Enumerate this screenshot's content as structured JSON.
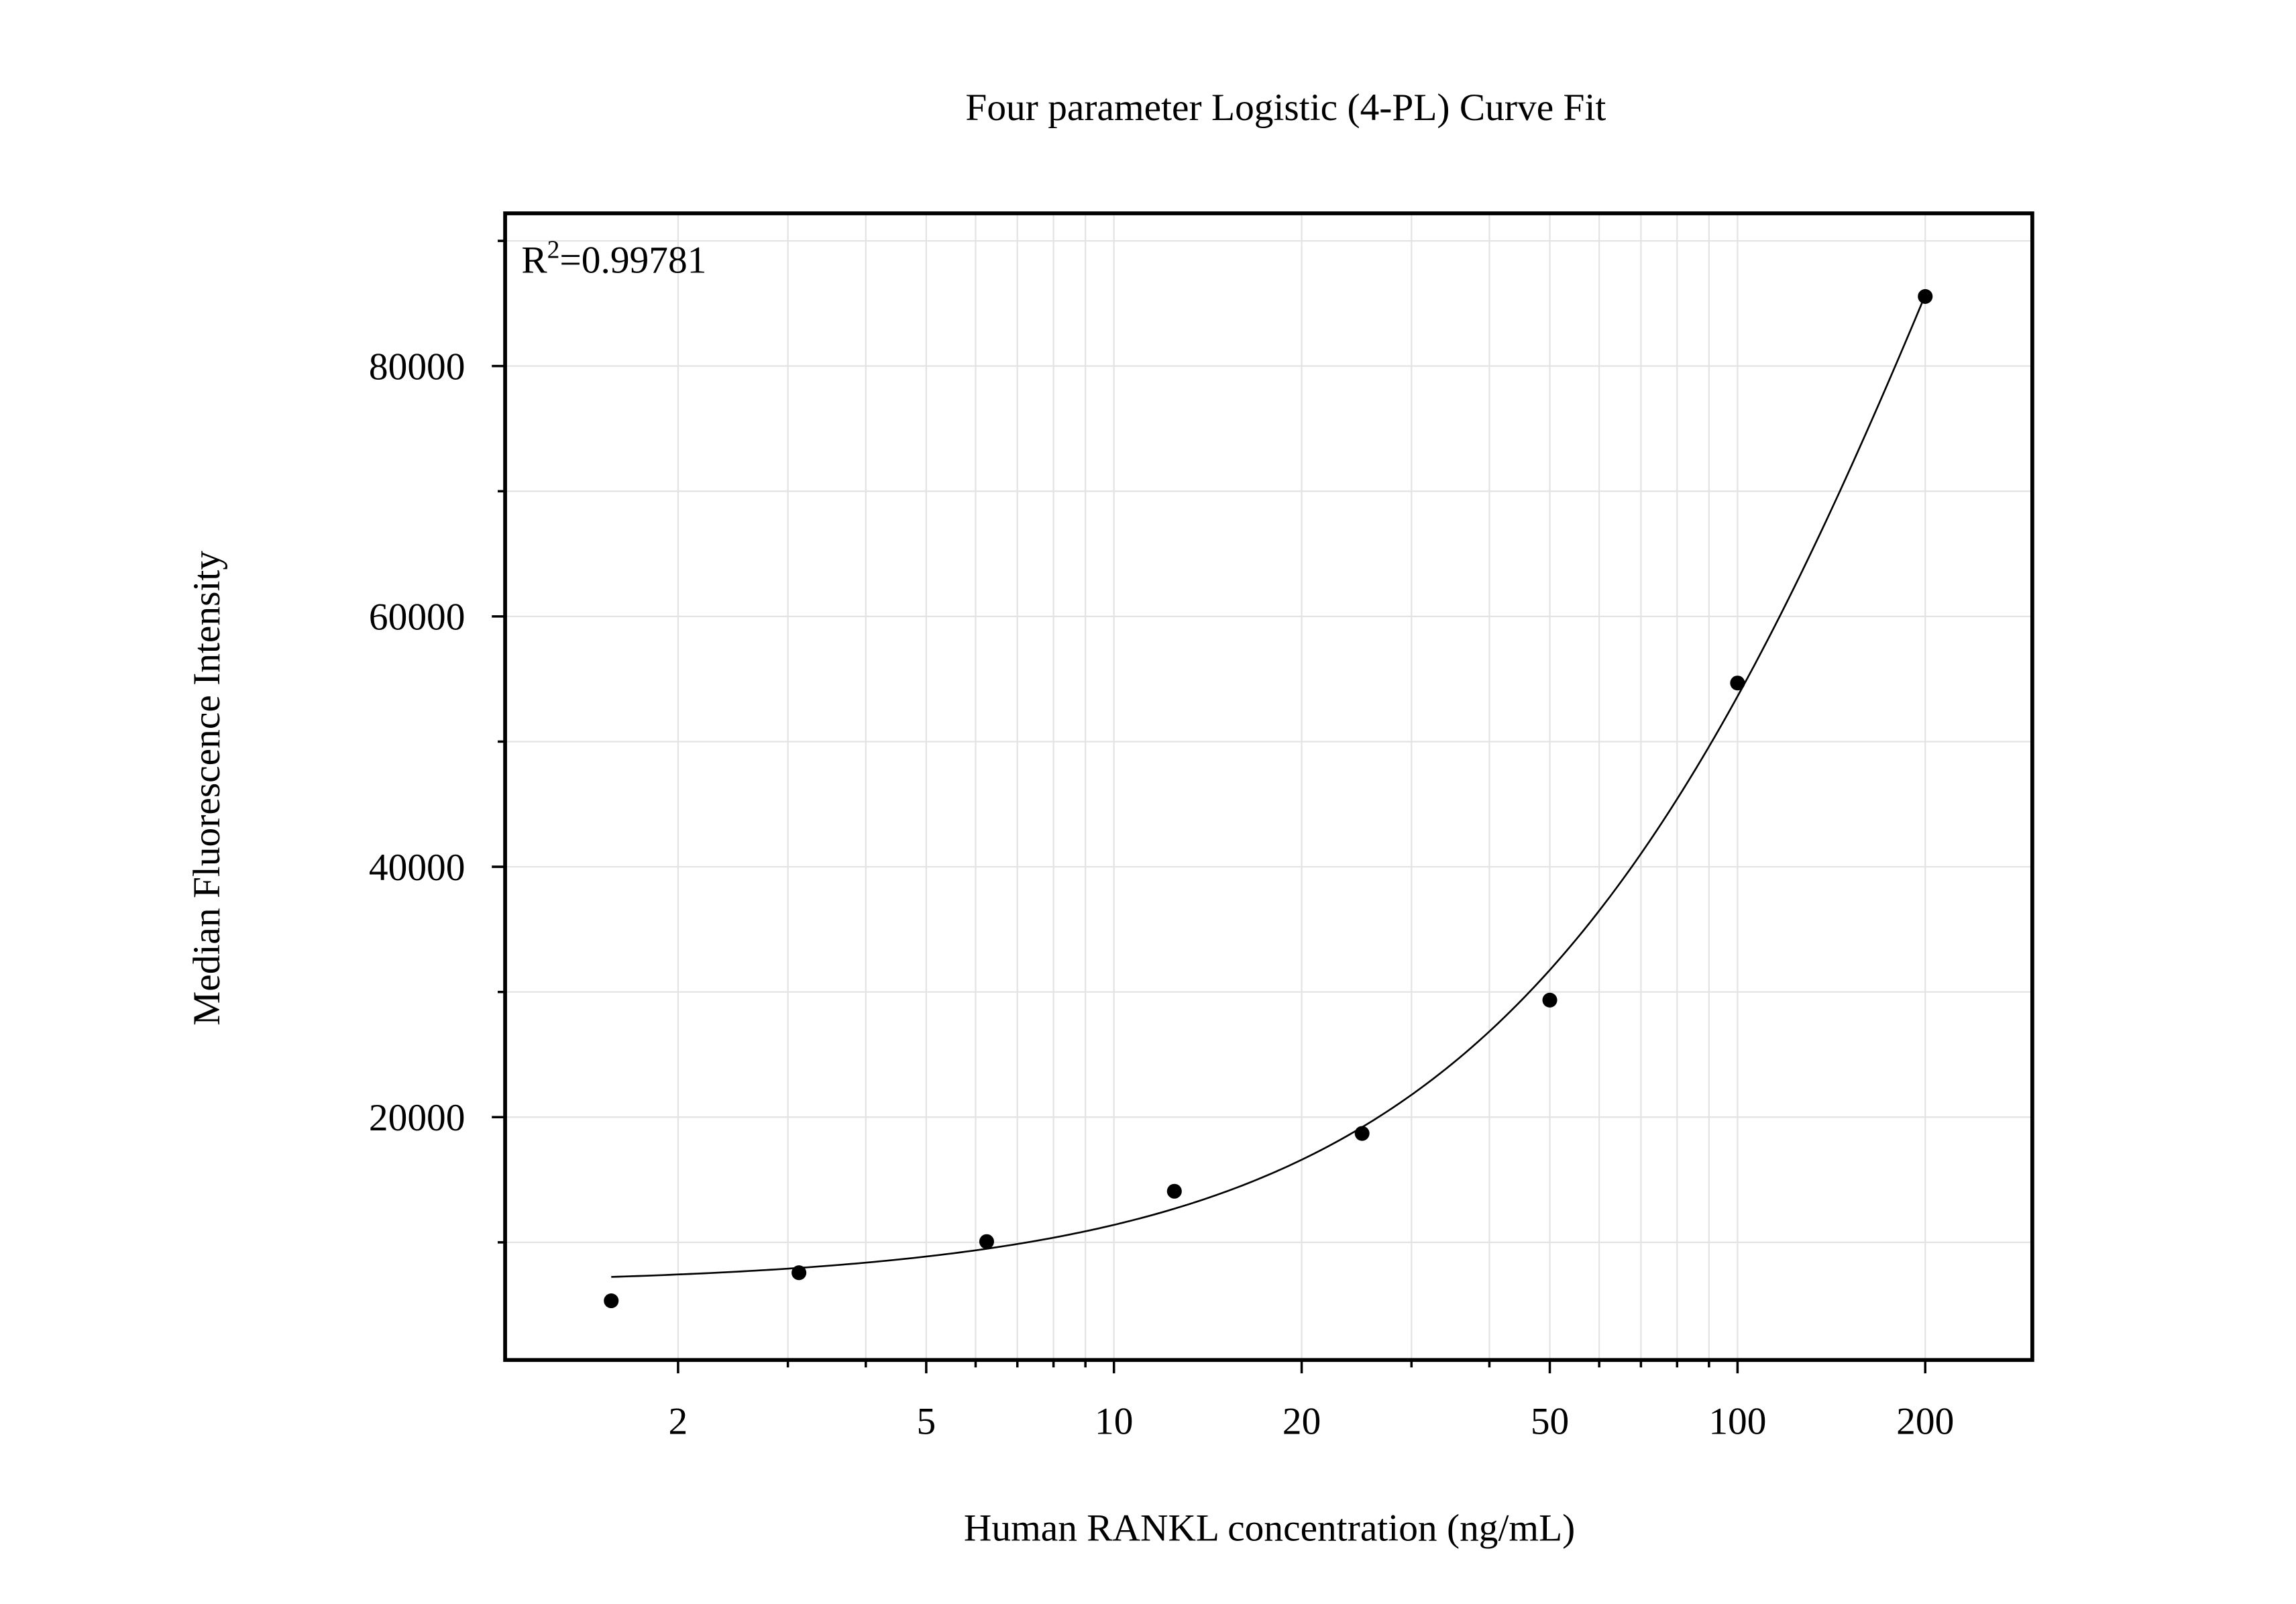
{
  "chart_data": {
    "type": "scatter",
    "title": "Four parameter Logistic (4-PL) Curve Fit",
    "xlabel": "Human RANKL concentration (ng/mL)",
    "ylabel": "Median Fluorescence Intensity",
    "x_scale": "log",
    "xlim": [
      1.056,
      297
    ],
    "ylim": [
      600,
      92200
    ],
    "x_ticks": [
      2,
      5,
      10,
      20,
      50,
      100,
      200
    ],
    "x_tick_labels": [
      "2",
      "5",
      "10",
      "20",
      "50",
      "100",
      "200"
    ],
    "y_ticks": [
      20000,
      40000,
      60000,
      80000
    ],
    "y_tick_labels": [
      "20000",
      "40000",
      "60000",
      "80000"
    ],
    "grid": true,
    "annotation": {
      "prefix": "R",
      "sup": "2",
      "value": "=0.99781"
    },
    "points": {
      "x": [
        1.5625,
        3.125,
        6.25,
        12.5,
        25,
        50,
        100,
        200
      ],
      "y": [
        5330,
        7570,
        10060,
        14080,
        18700,
        29350,
        54680,
        85560
      ],
      "color": "#000000"
    },
    "fit": {
      "model": "4PL",
      "A": 6600,
      "B": 1.1,
      "C": 285,
      "D": 202400,
      "x_range": [
        1.5625,
        200
      ],
      "color": "#000000"
    }
  }
}
